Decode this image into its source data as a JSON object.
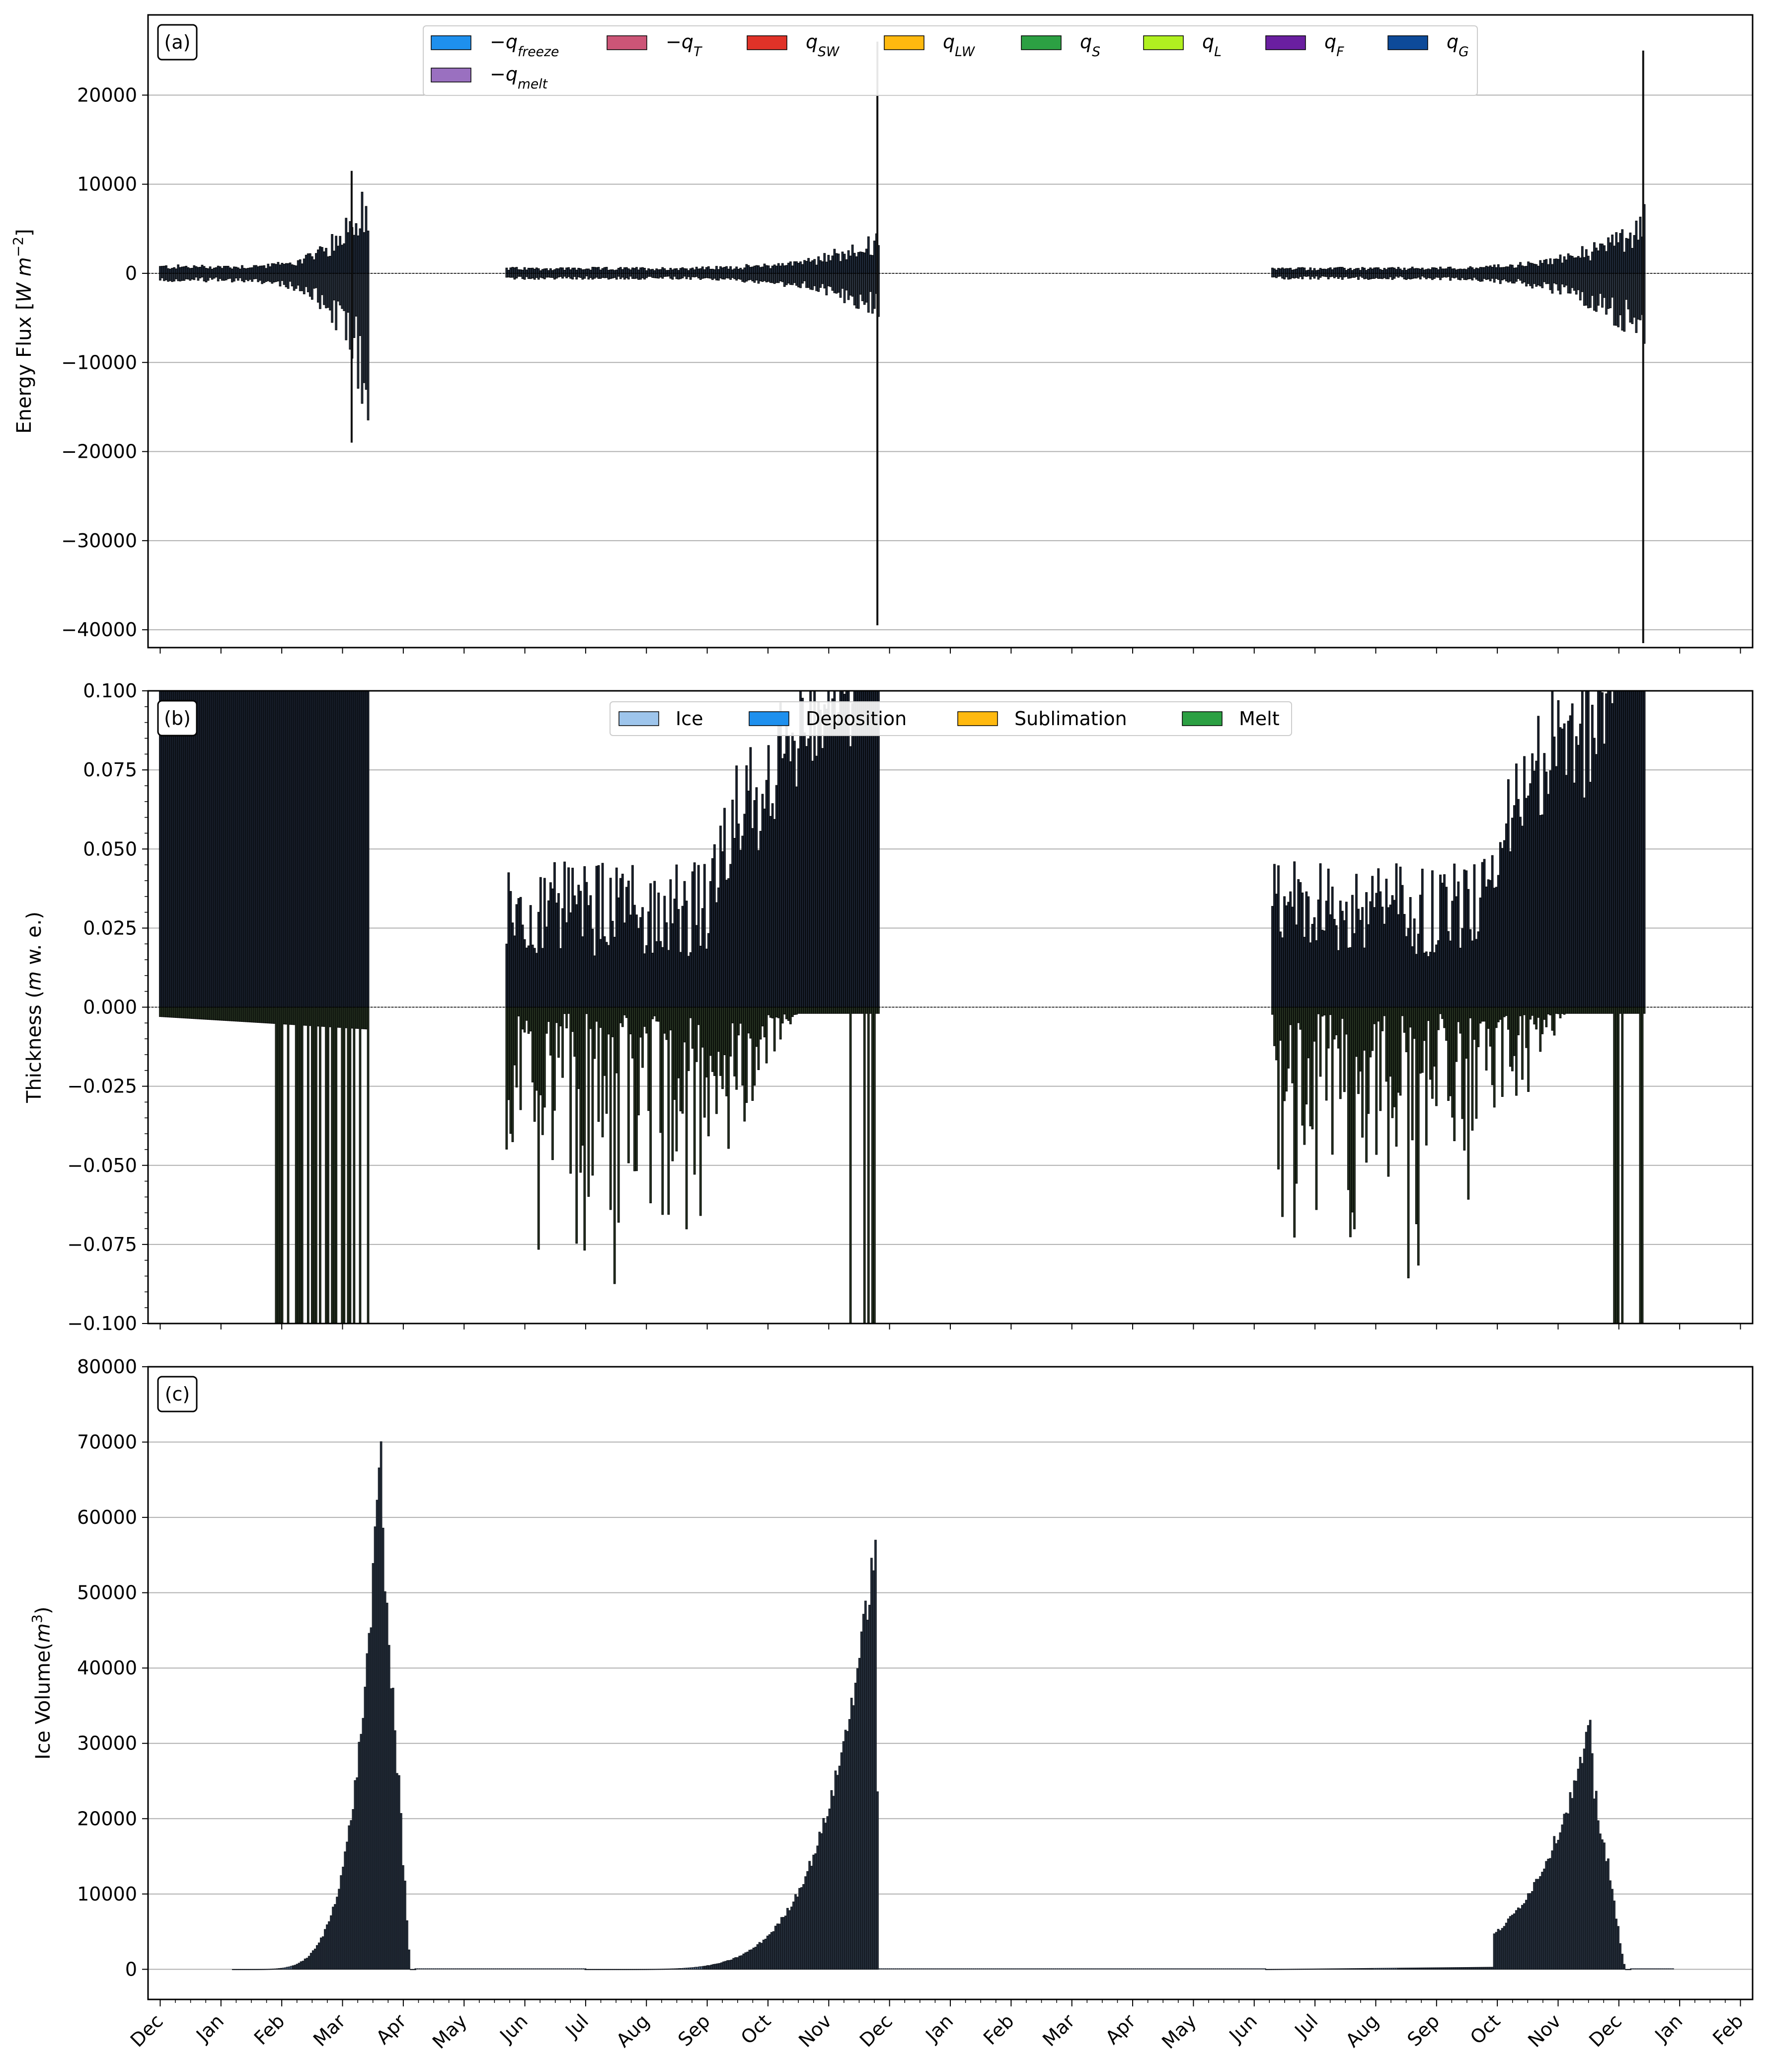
{
  "chart_data": [
    {
      "type": "bar",
      "panel_label": "(a)",
      "ylabel": "Energy Flux [W m^-2]",
      "ylabel_parts": {
        "base": "Energy Flux [",
        "unit": "W m",
        "sup": "−2",
        "close": "]"
      },
      "ylim": [
        -42000,
        29000
      ],
      "yticks": [
        20000,
        10000,
        0,
        -10000,
        -20000,
        -30000,
        -40000
      ],
      "ytick_labels": [
        "20000",
        "10000",
        "0",
        "−10000",
        "−20000",
        "−30000",
        "−40000"
      ],
      "grid": "horizontal",
      "legend_location": "upper center",
      "legend": [
        {
          "sym": "−q",
          "sub": "freeze",
          "color": "#1e90ee"
        },
        {
          "sym": "−q",
          "sub": "T",
          "color": "#cc5577"
        },
        {
          "sym": "q",
          "sub": "SW",
          "color": "#e03228"
        },
        {
          "sym": "q",
          "sub": "LW",
          "color": "#ffb90f"
        },
        {
          "sym": "q",
          "sub": "S",
          "color": "#2ca043"
        },
        {
          "sym": "q",
          "sub": "L",
          "color": "#b0f020"
        },
        {
          "sym": "q",
          "sub": "F",
          "color": "#6a1fa0"
        },
        {
          "sym": "q",
          "sub": "G",
          "color": "#0d4a99"
        },
        {
          "sym": "−q",
          "sub": "melt",
          "color": "#9a70c0"
        }
      ],
      "segments": [
        {
          "start_month": 0.0,
          "end_month": 3.45,
          "low": -1200,
          "high": 1200,
          "start_amp": 700,
          "peak": 8000,
          "neg_peak": 12000
        },
        {
          "start_month": 5.7,
          "end_month": 11.82,
          "low": -700,
          "high": 700,
          "start_amp": 500,
          "peak": 3000,
          "neg_peak": 3500
        },
        {
          "start_month": 18.3,
          "end_month": 24.45,
          "low": -700,
          "high": 700,
          "start_amp": 500,
          "peak": 5000,
          "neg_peak": 6500
        }
      ],
      "extreme_spikes": [
        {
          "month": 3.15,
          "value": 11500
        },
        {
          "month": 3.15,
          "value": -19000
        },
        {
          "month": 11.8,
          "value": 26000
        },
        {
          "month": 11.8,
          "value": -39500
        },
        {
          "month": 24.4,
          "value": 25000
        },
        {
          "month": 24.4,
          "value": -41500
        }
      ]
    },
    {
      "type": "bar",
      "panel_label": "(b)",
      "ylabel": "Thickness (m w. e.)",
      "ylabel_parts": {
        "base": "Thickness (",
        "unit": "m",
        "rest": " w. e.)"
      },
      "ylim": [
        -0.1,
        0.1
      ],
      "yticks": [
        0.1,
        0.075,
        0.05,
        0.025,
        0.0,
        -0.025,
        -0.05,
        -0.075,
        -0.1
      ],
      "ytick_labels": [
        "0.100",
        "0.075",
        "0.050",
        "0.025",
        "0.000",
        "−0.025",
        "−0.050",
        "−0.075",
        "−0.100"
      ],
      "grid": "horizontal",
      "legend_location": "upper center",
      "legend": [
        {
          "label": "Ice",
          "color": "#9ec5ec"
        },
        {
          "label": "Deposition",
          "color": "#1e90ee"
        },
        {
          "label": "Sublimation",
          "color": "#ffb90f"
        },
        {
          "label": "Melt",
          "color": "#2ca043"
        }
      ],
      "segments": [
        {
          "start_month": 0.0,
          "end_month": 3.45,
          "pos_mean": 0.1,
          "neg_mean": -0.004
        },
        {
          "start_month": 5.7,
          "end_month": 11.82,
          "pos_mean": 0.035,
          "neg_mean": -0.03
        },
        {
          "start_month": 18.3,
          "end_month": 24.45,
          "pos_mean": 0.045,
          "neg_mean": -0.03
        }
      ]
    },
    {
      "type": "bar",
      "panel_label": "(c)",
      "ylabel": "Ice Volume(m^3)",
      "ylabel_parts": {
        "base": "Ice Volume(",
        "unit": "m",
        "sup": "3",
        "close": ")"
      },
      "ylim": [
        -4000,
        80000
      ],
      "yticks": [
        80000,
        70000,
        60000,
        50000,
        40000,
        30000,
        20000,
        10000,
        0
      ],
      "ytick_labels": [
        "80000",
        "70000",
        "60000",
        "50000",
        "40000",
        "30000",
        "20000",
        "10000",
        "0"
      ],
      "grid": "horizontal",
      "xtick_labels": [
        "Dec",
        "Jan",
        "Feb",
        "Mar",
        "Apr",
        "May",
        "Jun",
        "Jul",
        "Aug",
        "Sep",
        "Oct",
        "Nov",
        "Dec",
        "Jan",
        "Feb",
        "Mar",
        "Apr",
        "May",
        "Jun",
        "Jul",
        "Aug",
        "Sep",
        "Oct",
        "Nov",
        "Dec",
        "Jan",
        "Feb"
      ],
      "seasons": [
        {
          "start_month": 1.2,
          "peak_month": 3.65,
          "end_month": 4.2,
          "peak_value": 76500
        },
        {
          "start_month": 7.0,
          "peak_month": 11.78,
          "end_month": 11.83,
          "peak_value": 60500
        },
        {
          "start_month": 18.2,
          "peak_month": 23.55,
          "end_month": 24.2,
          "peak_value": 34500
        }
      ]
    }
  ]
}
